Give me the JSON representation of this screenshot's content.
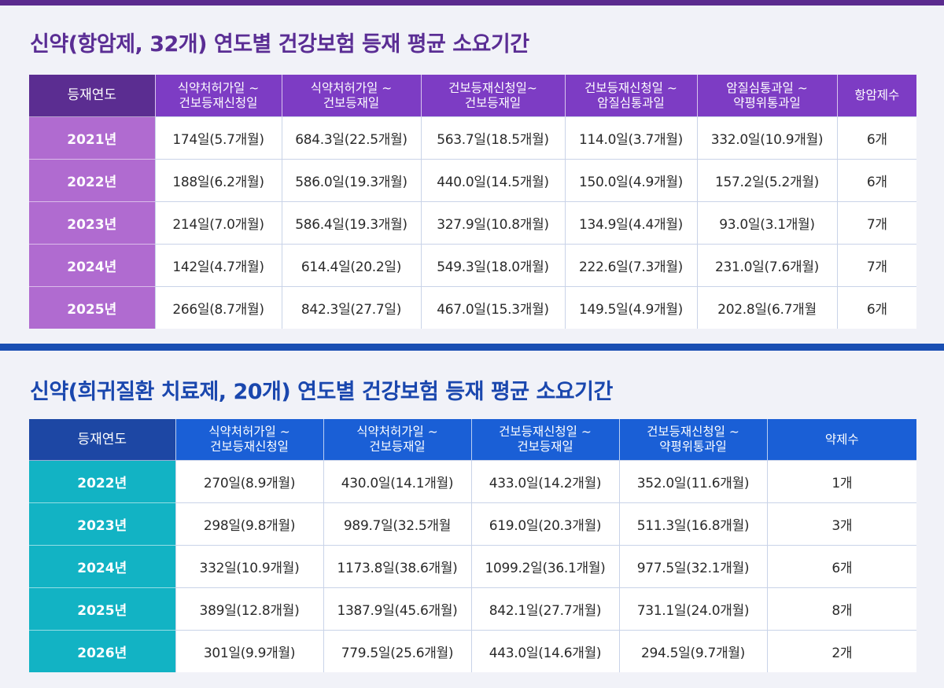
{
  "section1": {
    "title": "신약(항암제, 32개) 연도별 건강보험 등재 평균 소요기간",
    "headers": [
      {
        "l1": "등재연도",
        "l2": ""
      },
      {
        "l1": "식약처허가일 ~",
        "l2": "건보등재신청일"
      },
      {
        "l1": "식약처허가일 ~",
        "l2": "건보등재일"
      },
      {
        "l1": "건보등재신청일~",
        "l2": "건보등재일"
      },
      {
        "l1": "건보등재신청일 ~",
        "l2": "암질심통과일"
      },
      {
        "l1": "암질심통과일 ~",
        "l2": "약평위통과일"
      },
      {
        "l1": "항암제수",
        "l2": ""
      }
    ],
    "rows": [
      [
        "2021년",
        "174일(5.7개월)",
        "684.3일(22.5개월)",
        "563.7일(18.5개월)",
        "114.0일(3.7개월)",
        "332.0일(10.9개월)",
        "6개"
      ],
      [
        "2022년",
        "188일(6.2개월)",
        "586.0일(19.3개월)",
        "440.0일(14.5개월)",
        "150.0일(4.9개월)",
        "157.2일(5.2개월)",
        "6개"
      ],
      [
        "2023년",
        "214일(7.0개월)",
        "586.4일(19.3개월)",
        "327.9일(10.8개월)",
        "134.9일(4.4개월)",
        "93.0일(3.1개월)",
        "7개"
      ],
      [
        "2024년",
        "142일(4.7개월)",
        "614.4일(20.2일)",
        "549.3일(18.0개월)",
        "222.6일(7.3개월)",
        "231.0일(7.6개월)",
        "7개"
      ],
      [
        "2025년",
        "266일(8.7개월)",
        "842.3일(27.7일)",
        "467.0일(15.3개월)",
        "149.5일(4.9개월)",
        "202.8일(6.7개월",
        "6개"
      ]
    ]
  },
  "section2": {
    "title": "신약(희귀질환 치료제, 20개) 연도별 건강보험 등재 평균 소요기간",
    "headers": [
      {
        "l1": "등재연도",
        "l2": ""
      },
      {
        "l1": "식약처허가일 ~",
        "l2": "건보등재신청일"
      },
      {
        "l1": "식약처허가일 ~",
        "l2": "건보등재일"
      },
      {
        "l1": "건보등재신청일 ~",
        "l2": "건보등재일"
      },
      {
        "l1": "건보등재신청일 ~",
        "l2": "약평위통과일"
      },
      {
        "l1": "약제수",
        "l2": ""
      }
    ],
    "rows": [
      [
        "2022년",
        "270일(8.9개월)",
        "430.0일(14.1개월)",
        "433.0일(14.2개월)",
        "352.0일(11.6개월)",
        "1개"
      ],
      [
        "2023년",
        "298일(9.8개월)",
        "989.7일(32.5개월",
        "619.0일(20.3개월)",
        "511.3일(16.8개월)",
        "3개"
      ],
      [
        "2024년",
        "332일(10.9개월)",
        "1173.8일(38.6개월)",
        "1099.2일(36.1개월)",
        "977.5일(32.1개월)",
        "6개"
      ],
      [
        "2025년",
        "389일(12.8개월)",
        "1387.9일(45.6개월)",
        "842.1일(27.7개월)",
        "731.1일(24.0개월)",
        "8개"
      ],
      [
        "2026년",
        "301일(9.9개월)",
        "779.5일(25.6개월)",
        "443.0일(14.6개월)",
        "294.5일(9.7개월)",
        "2개"
      ]
    ]
  }
}
